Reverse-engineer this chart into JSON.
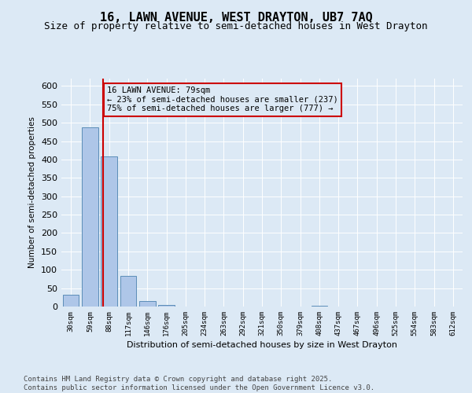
{
  "title": "16, LAWN AVENUE, WEST DRAYTON, UB7 7AQ",
  "subtitle": "Size of property relative to semi-detached houses in West Drayton",
  "xlabel": "Distribution of semi-detached houses by size in West Drayton",
  "ylabel": "Number of semi-detached properties",
  "footer": "Contains HM Land Registry data © Crown copyright and database right 2025.\nContains public sector information licensed under the Open Government Licence v3.0.",
  "bin_labels": [
    "30sqm",
    "59sqm",
    "88sqm",
    "117sqm",
    "146sqm",
    "176sqm",
    "205sqm",
    "234sqm",
    "263sqm",
    "292sqm",
    "321sqm",
    "350sqm",
    "379sqm",
    "408sqm",
    "437sqm",
    "467sqm",
    "496sqm",
    "525sqm",
    "554sqm",
    "583sqm",
    "612sqm"
  ],
  "bin_values": [
    32,
    487,
    408,
    83,
    14,
    5,
    1,
    0,
    0,
    0,
    0,
    0,
    0,
    2,
    0,
    0,
    0,
    0,
    0,
    0,
    0
  ],
  "bar_color": "#aec6e8",
  "bar_edge_color": "#5b8db8",
  "property_line_x": 1.69,
  "property_line_label": "16 LAWN AVENUE: 79sqm",
  "pct_smaller": "23% of semi-detached houses are smaller (237)",
  "pct_larger": "75% of semi-detached houses are larger (777)",
  "annotation_box_color": "#cc0000",
  "ylim": [
    0,
    620
  ],
  "yticks": [
    0,
    50,
    100,
    150,
    200,
    250,
    300,
    350,
    400,
    450,
    500,
    550,
    600
  ],
  "background_color": "#dce9f5",
  "grid_color": "#ffffff",
  "title_fontsize": 11,
  "subtitle_fontsize": 9,
  "footer_fontsize": 6.5
}
